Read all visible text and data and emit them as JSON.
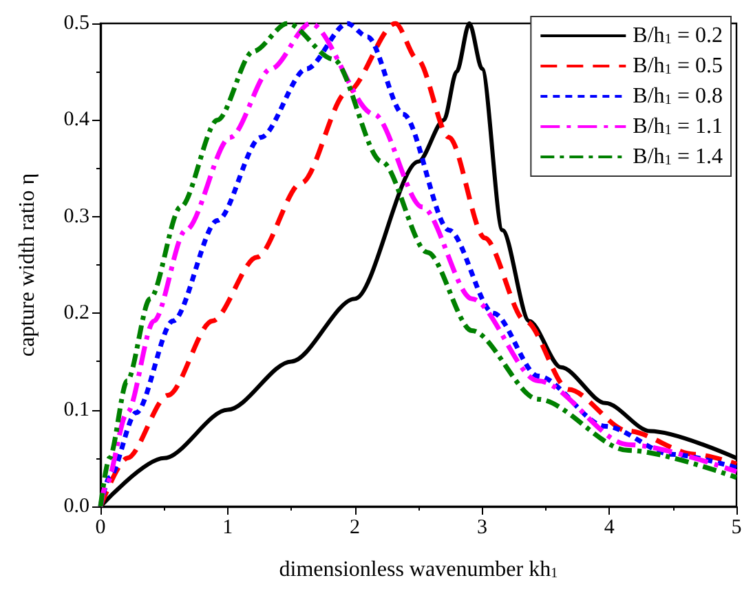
{
  "chart_data": {
    "type": "line",
    "xlabel": "dimensionless wavenumber kh$_{1}$",
    "ylabel": "capture width ratio η",
    "xlim": [
      0,
      5
    ],
    "xticks": [
      0,
      1,
      2,
      3,
      4,
      5
    ],
    "ylim": [
      0,
      0.5
    ],
    "yticks": [
      {
        "value": 0,
        "label": "0.0"
      },
      {
        "value": 0.1,
        "label": "0.1"
      },
      {
        "value": 0.2,
        "label": "0.2"
      },
      {
        "value": 0.3,
        "label": "0.3"
      },
      {
        "value": 0.4,
        "label": "0.4"
      },
      {
        "value": 0.5,
        "label": "0.5"
      }
    ],
    "grid": false,
    "legend": "top right",
    "marker": "none",
    "series": [
      {
        "name": "B/h$_{1}$ = 0.2",
        "color": "#000000",
        "line_style": "solid",
        "x": [
          0,
          0.5,
          1,
          1.5,
          2,
          2.5,
          2.7,
          2.8,
          2.9,
          3.0,
          3.16,
          3.37,
          3.62,
          3.97,
          4.32,
          5
        ],
        "values": [
          0,
          0.05,
          0.1,
          0.15,
          0.215,
          0.357,
          0.4,
          0.45,
          0.5,
          0.453,
          0.286,
          0.192,
          0.144,
          0.107,
          0.078,
          0.05
        ]
      },
      {
        "name": "B/h$_{1}$ = 0.5",
        "color": "#ff0000",
        "line_style": "dashed",
        "x": [
          0,
          0.21,
          0.53,
          0.88,
          1.23,
          1.58,
          1.94,
          2.32,
          2.49,
          2.74,
          3.02,
          3.34,
          3.68,
          4.15,
          4.67,
          5
        ],
        "values": [
          0,
          0.05,
          0.115,
          0.192,
          0.258,
          0.335,
          0.429,
          0.5,
          0.463,
          0.382,
          0.278,
          0.192,
          0.121,
          0.078,
          0.054,
          0.044
        ]
      },
      {
        "name": "B/h$_{1}$ = 0.8",
        "color": "#0000ff",
        "line_style": "dashed",
        "x": [
          0,
          0.07,
          0.28,
          0.57,
          0.92,
          1.26,
          1.62,
          1.94,
          2.1,
          2.38,
          2.74,
          3.09,
          3.44,
          3.97,
          4.49,
          5
        ],
        "values": [
          0,
          0.03,
          0.097,
          0.192,
          0.296,
          0.382,
          0.453,
          0.5,
          0.486,
          0.406,
          0.286,
          0.2,
          0.135,
          0.083,
          0.054,
          0.04
        ]
      },
      {
        "name": "B/h$_{1}$ = 1.1",
        "color": "#ff00ff",
        "line_style": "dashed",
        "x": [
          0,
          0.04,
          0.21,
          0.42,
          0.67,
          1.02,
          1.34,
          1.65,
          2.15,
          2.53,
          2.92,
          3.44,
          4.15,
          5
        ],
        "values": [
          0,
          0.021,
          0.097,
          0.192,
          0.286,
          0.382,
          0.453,
          0.5,
          0.406,
          0.31,
          0.215,
          0.13,
          0.064,
          0.036
        ]
      },
      {
        "name": "B/h$_{1}$ = 1.4",
        "color": "#008000",
        "line_style": "dashed",
        "x": [
          0,
          0.07,
          0.21,
          0.39,
          0.63,
          0.92,
          1.2,
          1.47,
          1.83,
          2.21,
          2.57,
          2.92,
          3.44,
          4.15,
          5
        ],
        "values": [
          0,
          0.05,
          0.13,
          0.215,
          0.31,
          0.4,
          0.471,
          0.5,
          0.463,
          0.357,
          0.263,
          0.182,
          0.111,
          0.058,
          0.03
        ]
      }
    ]
  }
}
